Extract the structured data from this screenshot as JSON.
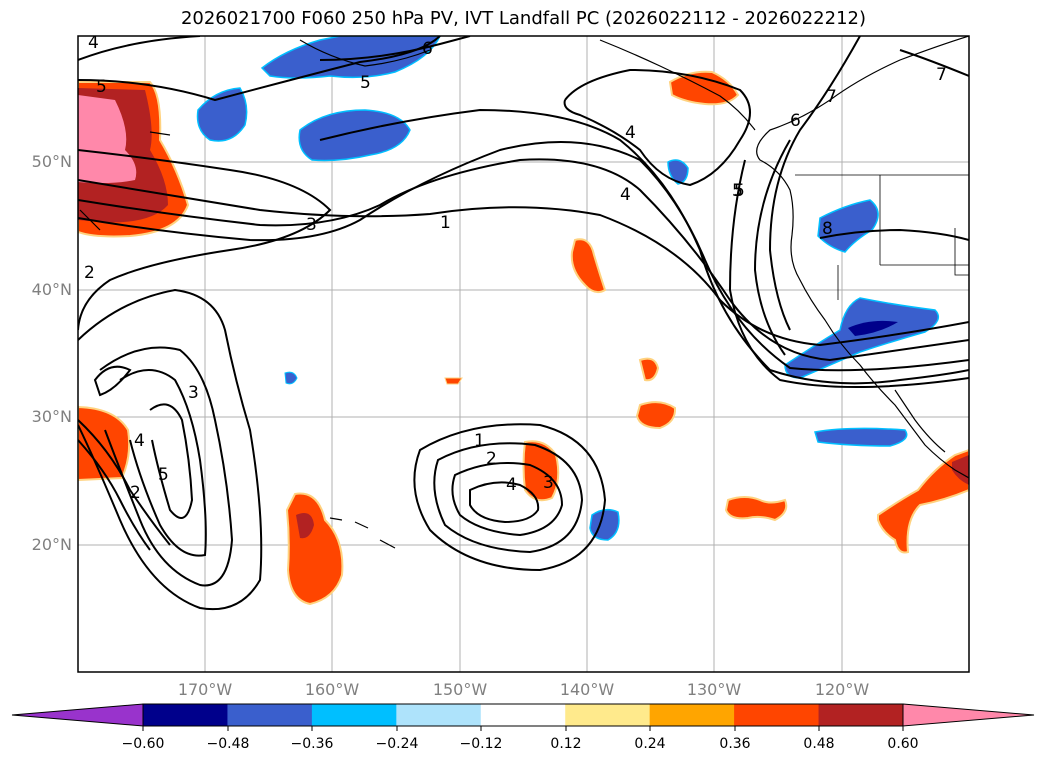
{
  "title": "2026021700 F060 250 hPa PV, IVT Landfall PC (2026022112 - 2026022212)",
  "axes": {
    "lat_labels": [
      "50°N",
      "40°N",
      "30°N",
      "20°N"
    ],
    "lon_labels": [
      "170°W",
      "160°W",
      "150°W",
      "140°W",
      "130°W",
      "120°W"
    ]
  },
  "colorbar": {
    "tick_labels": [
      "−0.60",
      "−0.48",
      "−0.36",
      "−0.24",
      "−0.12",
      "0.12",
      "0.24",
      "0.36",
      "0.48",
      "0.60"
    ],
    "colors": [
      "#9933cc",
      "#00008b",
      "#3a5fcd",
      "#00bfff",
      "#aee3fb",
      "#ffffff",
      "#ffea8c",
      "#ffa500",
      "#ff4500",
      "#b22222",
      "#ff88aa",
      "#ff88aa"
    ]
  },
  "contour_labels": [
    "4",
    "5",
    "6",
    "5",
    "7",
    "4",
    "6",
    "5",
    "4",
    "3",
    "1",
    "2",
    "3",
    "4",
    "5",
    "2",
    "1",
    "2",
    "4",
    "3",
    "5",
    "7",
    "8"
  ],
  "colors": {
    "negative_fill": "#3a5fcd",
    "negative_dark": "#00008b",
    "negative_edge": "#00bfff",
    "positive_fill": "#ff4500",
    "positive_dark": "#b22222",
    "positive_pink": "#ff88aa",
    "positive_edge": "#ffd27f",
    "grid": "#b0b0b0",
    "contour": "#000000"
  }
}
